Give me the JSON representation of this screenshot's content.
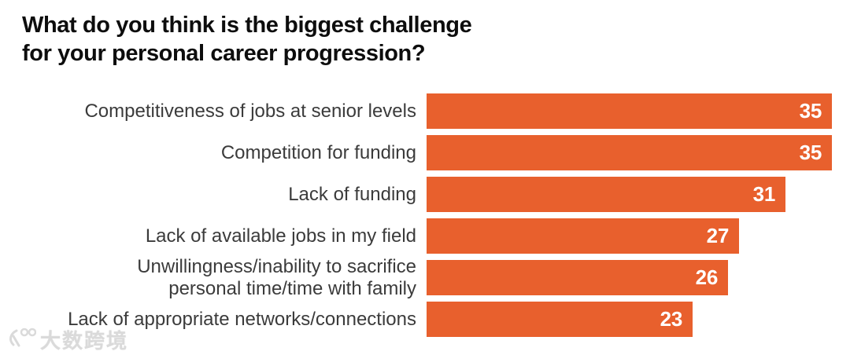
{
  "title": "What do you think is the biggest challenge\nfor your personal career progression?",
  "chart_data": {
    "type": "bar",
    "orientation": "horizontal",
    "title": "What do you think is the biggest challenge for your personal career progression?",
    "categories": [
      "Competitiveness of jobs at senior levels",
      "Competition for funding",
      "Lack of funding",
      "Lack of available jobs in my field",
      "Unwillingness/inability to sacrifice\npersonal time/time with family",
      "Lack of appropriate networks/connections"
    ],
    "values": [
      35,
      35,
      31,
      27,
      26,
      23
    ],
    "xlim": [
      0,
      35
    ],
    "grid": false,
    "legend": false,
    "value_labels_inside_bar_end": true,
    "bar_color": "#E8602D",
    "value_label_color": "#FFFFFF",
    "category_label_color": "#3B3B3B",
    "title_color": "#0D0D0D",
    "background_color": "#FFFFFF"
  },
  "watermark": {
    "text": "大数跨境"
  }
}
